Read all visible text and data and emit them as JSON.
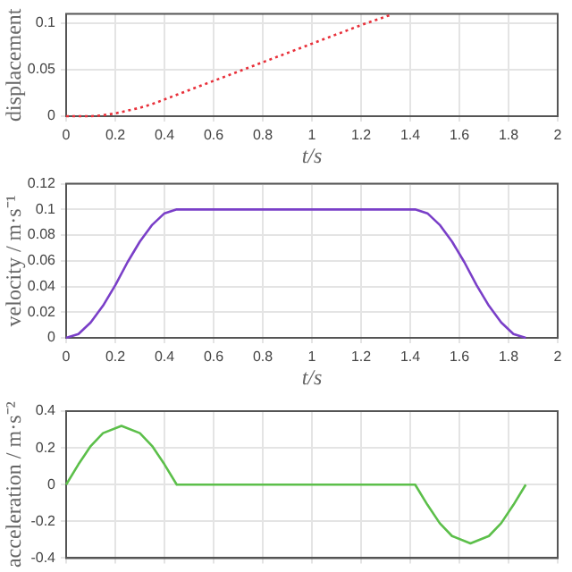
{
  "chart_data": [
    {
      "type": "line",
      "xlabel": "t/s",
      "ylabel": "displacement",
      "xlim": [
        0,
        2
      ],
      "xticks": [
        0,
        0.2,
        0.4,
        0.6,
        0.8,
        1,
        1.2,
        1.4,
        1.6,
        1.8,
        2
      ],
      "ylim": [
        0,
        0.11
      ],
      "yticks": [
        0,
        0.05,
        0.1
      ],
      "grid": true,
      "line_style": "dotted",
      "series": [
        {
          "color": "#e8303a",
          "x": [
            0,
            0.1,
            0.15,
            0.2,
            0.25,
            0.3,
            0.35,
            0.4,
            0.45,
            0.6,
            0.8,
            1,
            1.2,
            1.32
          ],
          "values": [
            0,
            0,
            0.001,
            0.003,
            0.006,
            0.009,
            0.013,
            0.018,
            0.023,
            0.038,
            0.058,
            0.078,
            0.098,
            0.109
          ]
        }
      ]
    },
    {
      "type": "line",
      "xlabel": "t/s",
      "ylabel": "velocity / m·s⁻¹",
      "xlim": [
        0,
        2
      ],
      "xticks": [
        0,
        0.2,
        0.4,
        0.6,
        0.8,
        1,
        1.2,
        1.4,
        1.6,
        1.8,
        2
      ],
      "ylim": [
        0,
        0.12
      ],
      "yticks": [
        0,
        0.02,
        0.04,
        0.06,
        0.08,
        0.1,
        0.12
      ],
      "grid": true,
      "line_style": "solid",
      "series": [
        {
          "color": "#7a3fc8",
          "x": [
            0,
            0.05,
            0.1,
            0.15,
            0.2,
            0.25,
            0.3,
            0.35,
            0.4,
            0.45,
            1.42,
            1.47,
            1.52,
            1.57,
            1.62,
            1.67,
            1.72,
            1.77,
            1.82,
            1.87
          ],
          "values": [
            0,
            0.003,
            0.012,
            0.025,
            0.041,
            0.059,
            0.075,
            0.088,
            0.097,
            0.1,
            0.1,
            0.097,
            0.088,
            0.075,
            0.059,
            0.041,
            0.025,
            0.012,
            0.003,
            0
          ]
        }
      ]
    },
    {
      "type": "line",
      "ylabel": "acceleration / m·s⁻²",
      "xlim": [
        0,
        2
      ],
      "xticks": [
        0,
        0.2,
        0.4,
        0.6,
        0.8,
        1,
        1.2,
        1.4,
        1.6,
        1.8,
        2
      ],
      "ylim": [
        -0.4,
        0.4
      ],
      "yticks": [
        -0.4,
        -0.2,
        0,
        0.2,
        0.4
      ],
      "grid": true,
      "line_style": "solid",
      "tick_labels": "y",
      "series": [
        {
          "color": "#5cbf4a",
          "x": [
            0,
            0.05,
            0.1,
            0.15,
            0.225,
            0.3,
            0.35,
            0.4,
            0.45,
            1.42,
            1.47,
            1.52,
            1.57,
            1.645,
            1.72,
            1.77,
            1.82,
            1.87
          ],
          "values": [
            0,
            0.11,
            0.21,
            0.28,
            0.32,
            0.28,
            0.21,
            0.11,
            0,
            0,
            -0.11,
            -0.21,
            -0.28,
            -0.32,
            -0.28,
            -0.21,
            -0.11,
            0
          ]
        }
      ]
    }
  ]
}
